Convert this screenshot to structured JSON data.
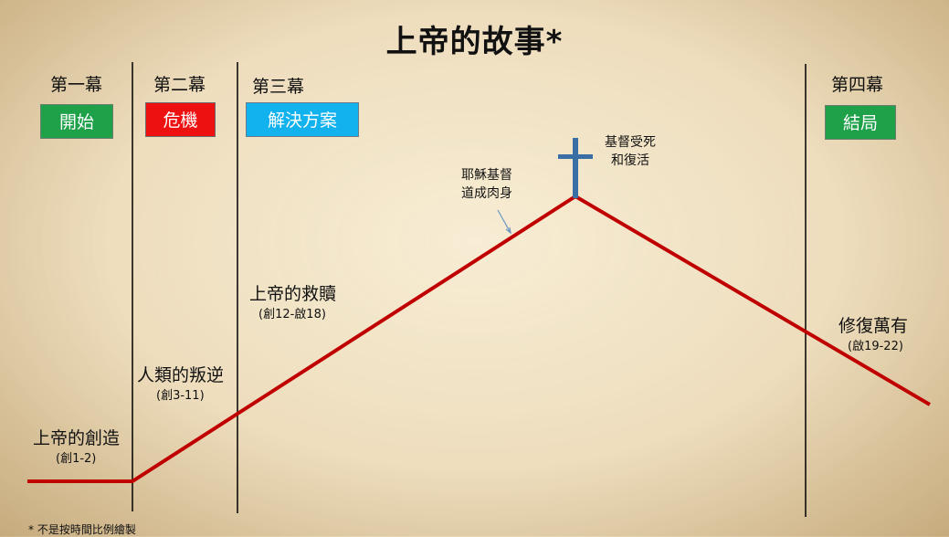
{
  "title": "上帝的故事*",
  "acts": [
    {
      "label": "第一幕",
      "badge": "開始",
      "color": "#1fa14a"
    },
    {
      "label": "第二幕",
      "badge": "危機",
      "color": "#ee1111"
    },
    {
      "label": "第三幕",
      "badge": "解決方案",
      "color": "#12b2ee"
    },
    {
      "label": "第四幕",
      "badge": "結局",
      "color": "#1fa14a"
    }
  ],
  "events": {
    "creation": {
      "label": "上帝的創造",
      "ref": "(創1-2)"
    },
    "rebellion": {
      "label": "人類的叛逆",
      "ref": "(創3-11)"
    },
    "redemption": {
      "label": "上帝的救贖",
      "ref": "(創12-啟18)"
    },
    "restoration": {
      "label": "修復萬有",
      "ref": "(啟19-22)"
    },
    "incarnation": {
      "line1": "耶穌基督",
      "line2": "道成肉身"
    },
    "death_resurrection": {
      "line1": "基督受死",
      "line2": "和復活"
    }
  },
  "footnote": "* 不是按時間比例繪製",
  "colors": {
    "story_line": "#c00000",
    "cross": "#3a6fa5",
    "divider": "#000000"
  }
}
